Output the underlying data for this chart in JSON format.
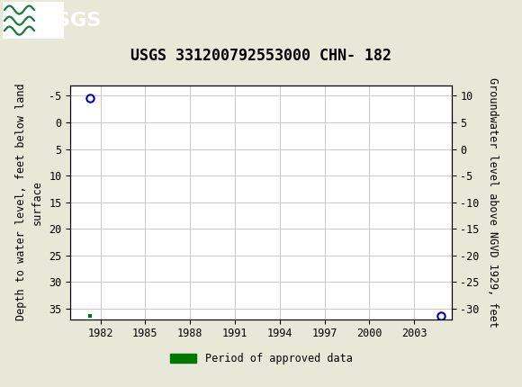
{
  "title": "USGS 331200792553000 CHN- 182",
  "header_bg_color": "#1a7a3c",
  "fig_bg_color": "#e8e8d8",
  "plot_bg_color": "#ffffff",
  "grid_color": "#c8c8c8",
  "left_ylabel": "Depth to water level, feet below land\nsurface",
  "right_ylabel": "Groundwater level above NGVD 1929, feet",
  "xlim_left": 1980.0,
  "xlim_right": 2005.5,
  "ylim_bottom": 37,
  "ylim_top": -7,
  "yticks_left": [
    -5,
    0,
    5,
    10,
    15,
    20,
    25,
    30,
    35
  ],
  "yticks_right": [
    10,
    5,
    0,
    -5,
    -10,
    -15,
    -20,
    -25,
    -30
  ],
  "xticks": [
    1982,
    1985,
    1988,
    1991,
    1994,
    1997,
    2000,
    2003
  ],
  "data_point_x": 1981.3,
  "data_point_y": -4.5,
  "data_point_color": "#0000bb",
  "data_point_size": 6,
  "green_sq_left_x": 1981.3,
  "green_sq_right_x": 2004.8,
  "green_sq_y": 36.3,
  "green_color": "#007700",
  "blue_dot_x": 2004.8,
  "blue_dot_y": 36.3,
  "legend_label": "Period of approved data",
  "title_fontsize": 12,
  "axis_fontsize": 8.5,
  "tick_fontsize": 8.5
}
